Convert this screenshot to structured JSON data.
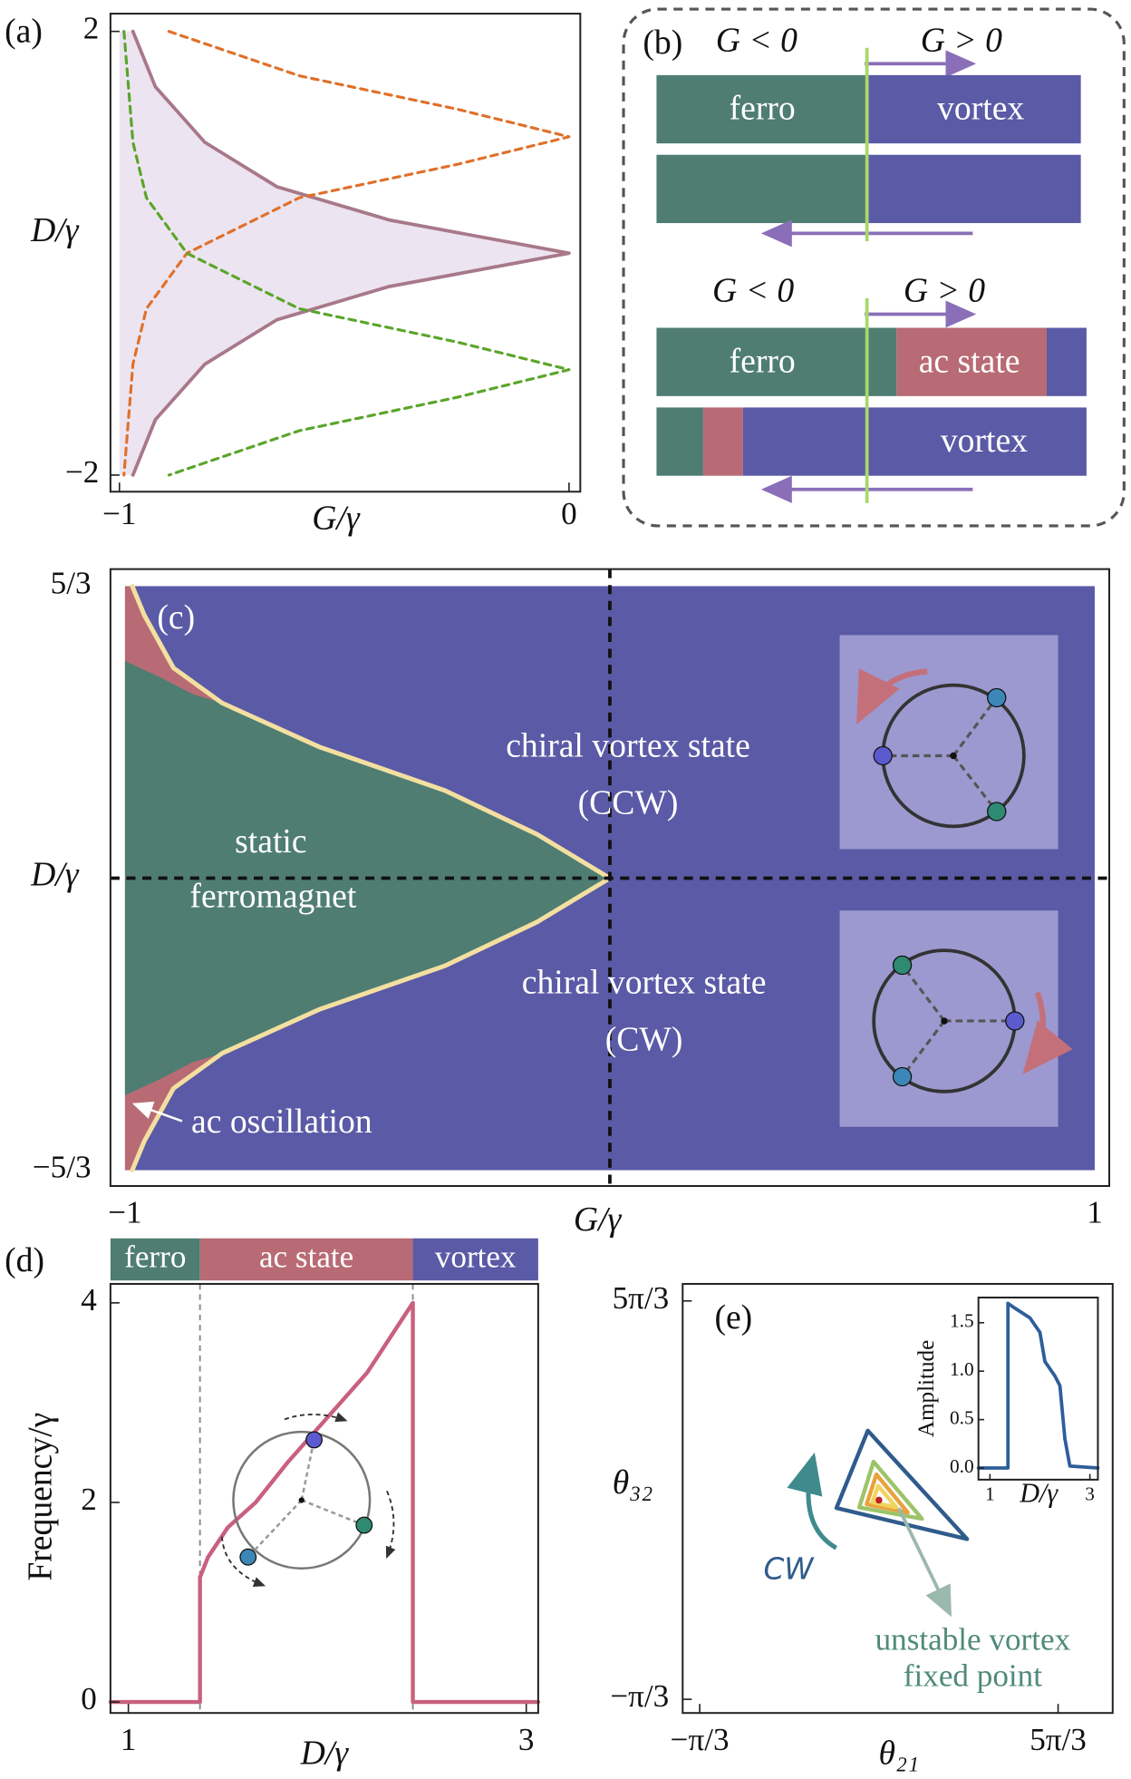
{
  "chart_data": [
    {
      "type": "line",
      "panel_label": "(a)",
      "xlabel": "G/γ",
      "ylabel": "D/γ",
      "xlim": [
        -1.02,
        0.025
      ],
      "ylim": [
        -2.15,
        2.16
      ],
      "xticks": [
        {
          "value": -1,
          "label": "−1"
        },
        0
      ],
      "yticks": [
        {
          "value": -2,
          "label": "−2"
        },
        2
      ],
      "series": [
        {
          "color": "#a8788a",
          "fill_color": "#ece4f0",
          "x": [
            -0.97,
            -0.92,
            -0.81,
            -0.65,
            -0.4,
            -0.2,
            0,
            -0.2,
            -0.4,
            -0.65,
            -0.81,
            -0.92,
            -0.97
          ],
          "values": [
            2,
            1.5,
            1,
            0.6,
            0.3,
            0.15,
            0,
            -0.15,
            -0.3,
            -0.6,
            -1,
            -1.5,
            -2
          ]
        },
        {
          "color": "#e0702a",
          "dashed": true,
          "x": [
            -0.89,
            -0.6,
            -0.25,
            0,
            -0.25,
            -0.6,
            -0.85,
            -0.94,
            -0.97,
            -0.98,
            -0.99
          ],
          "values": [
            2,
            1.6,
            1.3,
            1.05,
            0.8,
            0.5,
            0,
            -0.5,
            -1,
            -1.5,
            -2
          ]
        },
        {
          "color": "#5aa52a",
          "dashed": true,
          "x": [
            -0.99,
            -0.98,
            -0.97,
            -0.94,
            -0.85,
            -0.6,
            -0.25,
            0,
            -0.25,
            -0.6,
            -0.89
          ],
          "values": [
            2,
            1.5,
            1,
            0.5,
            0,
            -0.5,
            -0.8,
            -1.05,
            -1.3,
            -1.6,
            -2
          ]
        }
      ]
    },
    {
      "type": "phase",
      "panel_label": "(c)",
      "xlabel": "G/γ",
      "ylabel": "D/γ",
      "xlim": [
        -1.03,
        1.03
      ],
      "ylim": [
        -1.757,
        1.764
      ],
      "xticks": [
        {
          "value": -1,
          "label": "−1"
        },
        1
      ],
      "yticks": [
        {
          "value": 1.6667,
          "label": "5/3"
        },
        {
          "value": -1.6667,
          "label": "−5/3"
        }
      ],
      "background_color": "#5b5aa6",
      "zero_lines": true,
      "series": [
        {
          "color": "#f3dfa0",
          "fill_color": "#b86b74",
          "x": [
            -0.985,
            -0.96,
            -0.9,
            -0.8,
            -0.6,
            -0.34,
            -0.15,
            0,
            -0.15,
            -0.34,
            -0.6,
            -0.8,
            -0.9,
            -0.96,
            -0.985
          ],
          "values": [
            1.6667,
            1.5,
            1.2,
            1.0,
            0.75,
            0.5,
            0.25,
            0,
            -0.25,
            -0.5,
            -0.75,
            -1.0,
            -1.2,
            -1.5,
            -1.6667
          ]
        },
        {
          "color": "#4f7d72",
          "x": [
            -1,
            -0.93,
            -0.86,
            -0.8
          ],
          "values": [
            1.24,
            1.15,
            1.05,
            1.0
          ]
        },
        {
          "color": "#4f7d72",
          "x": [
            -0.8,
            -0.86,
            -0.93,
            -1
          ],
          "values": [
            -1.0,
            -1.05,
            -1.15,
            -1.24
          ]
        }
      ],
      "annotations": [
        "chiral vortex state",
        "(CCW)",
        "static",
        "ferromagnet",
        "chiral vortex state",
        "(CW)",
        "ac oscillation"
      ]
    },
    {
      "type": "line",
      "panel_label": "(d)",
      "xlabel": "D/γ",
      "ylabel": "Frequency/γ",
      "xlim": [
        0.91,
        3.06
      ],
      "ylim": [
        -0.11,
        4.19
      ],
      "xticks": [
        1,
        3
      ],
      "yticks": [
        0,
        2,
        4
      ],
      "phases": {
        "labels": [
          "ferro",
          "ac state",
          "vortex"
        ],
        "colors": [
          "#4f7d72",
          "#b86b74",
          "#5b5aa6"
        ],
        "edges": [
          1.36,
          2.43
        ]
      },
      "series": [
        {
          "color": "#c9607e",
          "x": [
            0.91,
            1.36,
            1.36,
            1.4,
            1.5,
            1.64,
            1.8,
            2.0,
            2.2,
            2.43,
            2.43,
            3.06
          ],
          "values": [
            0,
            0,
            1.25,
            1.45,
            1.75,
            2.0,
            2.4,
            2.85,
            3.3,
            4.0,
            0,
            0
          ]
        }
      ]
    },
    {
      "type": "line",
      "panel_label": "(e)",
      "xlabel": "θ₂₁",
      "ylabel": "θ₃₂",
      "xlim": [
        -1.346,
        6.193
      ],
      "ylim": [
        -1.263,
        5.505
      ],
      "xticks": [
        {
          "value": -1.0472,
          "label": "−π/3"
        },
        {
          "value": 5.236,
          "label": "5π/3"
        }
      ],
      "yticks": [
        {
          "value": -1.0472,
          "label": "−π/3"
        },
        {
          "value": 5.236,
          "label": "5π/3"
        }
      ],
      "closed": true,
      "fixed_point": [
        2.0944,
        2.0944
      ],
      "series": [
        {
          "color": "#2f5b8c",
          "x": [
            1.9,
            3.64,
            1.35,
            1.9
          ],
          "values": [
            3.19,
            1.48,
            1.97,
            3.19
          ]
        },
        {
          "color": "#9cc46a",
          "x": [
            2.0,
            2.85,
            1.75,
            2.0
          ],
          "values": [
            2.7,
            1.8,
            1.98,
            2.7
          ]
        },
        {
          "color": "#e9a23b",
          "x": [
            2.05,
            2.6,
            1.88,
            2.05
          ],
          "values": [
            2.5,
            1.9,
            2.03,
            2.5
          ]
        },
        {
          "color": "#f0d35c",
          "x": [
            2.08,
            2.4,
            1.98,
            2.08
          ],
          "values": [
            2.32,
            1.98,
            2.06,
            2.32
          ]
        }
      ],
      "annotations": [
        "CW",
        "unstable vortex",
        "fixed point"
      ]
    },
    {
      "type": "line",
      "xlabel": "D/γ",
      "ylabel": "Amplitude",
      "xlim": [
        0.77,
        3.16
      ],
      "ylim": [
        -0.12,
        1.76
      ],
      "xticks": [
        1,
        3
      ],
      "yticks": [
        {
          "value": 0,
          "label": "0.0"
        },
        {
          "value": 0.5,
          "label": "0.5"
        },
        {
          "value": 1,
          "label": "1.0"
        },
        {
          "value": 1.5,
          "label": "1.5"
        }
      ],
      "series": [
        {
          "color": "#2e5e9a",
          "x": [
            0.77,
            1.36,
            1.36,
            1.5,
            1.8,
            2.0,
            2.1,
            2.3,
            2.4,
            2.5,
            2.6,
            3.16
          ],
          "values": [
            0,
            0,
            1.7,
            1.65,
            1.55,
            1.4,
            1.1,
            0.95,
            0.85,
            0.3,
            0.02,
            0
          ]
        }
      ]
    }
  ],
  "diagram_b": {
    "label": "(b)",
    "upper": {
      "g_negative": "G < 0",
      "g_positive": "G > 0",
      "left_state": "ferro",
      "right_state": "vortex"
    },
    "lower": {
      "g_negative": "G < 0",
      "g_positive": "G > 0",
      "left_state": "ferro",
      "middle_state": "ac state",
      "right_state": "vortex"
    }
  }
}
